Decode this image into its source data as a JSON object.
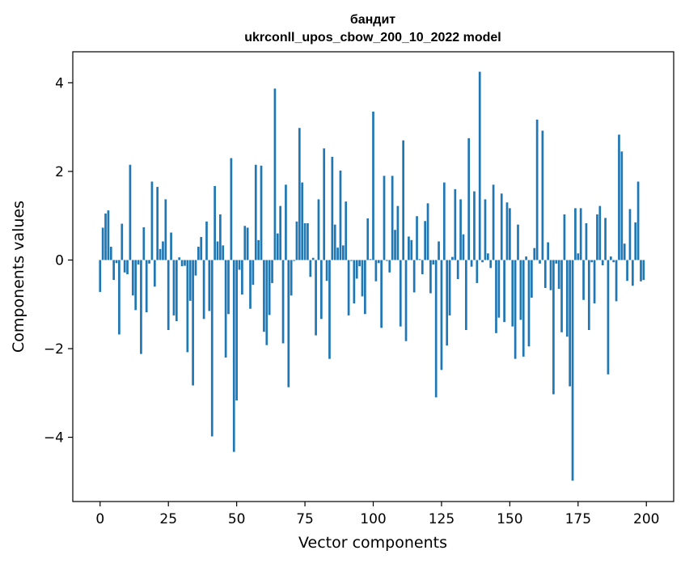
{
  "chart_data": {
    "type": "bar",
    "title": "бандит",
    "subtitle": "ukrconll_upos_cbow_200_10_2022 model",
    "xlabel": "Vector components",
    "ylabel": "Components values",
    "xlim": [
      -10,
      210
    ],
    "ylim": [
      -5.45,
      4.7
    ],
    "xticks": [
      0,
      25,
      50,
      75,
      100,
      125,
      150,
      175,
      200
    ],
    "xtick_labels": [
      "0",
      "25",
      "50",
      "75",
      "100",
      "125",
      "150",
      "175",
      "200"
    ],
    "yticks": [
      -4,
      -2,
      0,
      2,
      4
    ],
    "ytick_labels": [
      "−4",
      "−2",
      "0",
      "2",
      "4"
    ],
    "grid": false,
    "bar_color": "#1f77b4",
    "x": [
      0,
      1,
      2,
      3,
      4,
      5,
      6,
      7,
      8,
      9,
      10,
      11,
      12,
      13,
      14,
      15,
      16,
      17,
      18,
      19,
      20,
      21,
      22,
      23,
      24,
      25,
      26,
      27,
      28,
      29,
      30,
      31,
      32,
      33,
      34,
      35,
      36,
      37,
      38,
      39,
      40,
      41,
      42,
      43,
      44,
      45,
      46,
      47,
      48,
      49,
      50,
      51,
      52,
      53,
      54,
      55,
      56,
      57,
      58,
      59,
      60,
      61,
      62,
      63,
      64,
      65,
      66,
      67,
      68,
      69,
      70,
      71,
      72,
      73,
      74,
      75,
      76,
      77,
      78,
      79,
      80,
      81,
      82,
      83,
      84,
      85,
      86,
      87,
      88,
      89,
      90,
      91,
      92,
      93,
      94,
      95,
      96,
      97,
      98,
      99,
      100,
      101,
      102,
      103,
      104,
      105,
      106,
      107,
      108,
      109,
      110,
      111,
      112,
      113,
      114,
      115,
      116,
      117,
      118,
      119,
      120,
      121,
      122,
      123,
      124,
      125,
      126,
      127,
      128,
      129,
      130,
      131,
      132,
      133,
      134,
      135,
      136,
      137,
      138,
      139,
      140,
      141,
      142,
      143,
      144,
      145,
      146,
      147,
      148,
      149,
      150,
      151,
      152,
      153,
      154,
      155,
      156,
      157,
      158,
      159,
      160,
      161,
      162,
      163,
      164,
      165,
      166,
      167,
      168,
      169,
      170,
      171,
      172,
      173,
      174,
      175,
      176,
      177,
      178,
      179,
      180,
      181,
      182,
      183,
      184,
      185,
      186,
      187,
      188,
      189,
      190,
      191,
      192,
      193,
      194,
      195,
      196,
      197,
      198,
      199
    ],
    "values": [
      -0.72,
      0.73,
      1.05,
      1.12,
      0.3,
      -0.45,
      -0.07,
      -1.68,
      0.82,
      -0.28,
      -0.32,
      2.15,
      -0.8,
      -1.13,
      -0.1,
      -2.12,
      0.74,
      -1.18,
      -0.08,
      1.77,
      -0.6,
      1.65,
      0.25,
      0.42,
      1.37,
      -1.58,
      0.62,
      -1.25,
      -1.38,
      0.06,
      -0.14,
      -0.13,
      -2.08,
      -0.92,
      -2.83,
      -0.35,
      0.3,
      0.52,
      -1.33,
      0.87,
      -1.15,
      -3.98,
      1.67,
      0.42,
      1.03,
      0.33,
      -2.2,
      -1.22,
      2.3,
      -4.33,
      -3.17,
      -0.22,
      -0.78,
      0.77,
      0.73,
      -1.1,
      -0.56,
      2.15,
      0.45,
      2.13,
      -1.62,
      -1.92,
      -1.24,
      -0.52,
      3.87,
      0.6,
      1.22,
      -1.88,
      1.7,
      -2.87,
      -0.8,
      -0.02,
      0.87,
      2.98,
      1.75,
      0.83,
      0.83,
      -0.38,
      0.05,
      -1.7,
      1.37,
      -1.33,
      2.52,
      -0.47,
      -2.23,
      2.33,
      0.8,
      0.28,
      2.02,
      0.33,
      1.32,
      -1.25,
      -0.02,
      -0.98,
      -0.42,
      -0.14,
      -0.82,
      -1.22,
      0.94,
      0.02,
      3.35,
      -0.48,
      -0.07,
      -1.53,
      1.9,
      -0.02,
      -0.28,
      1.9,
      0.68,
      1.22,
      -1.5,
      2.7,
      -1.83,
      0.53,
      0.45,
      -0.73,
      0.99,
      0.02,
      -0.32,
      0.88,
      1.28,
      -0.75,
      -0.1,
      -3.1,
      0.42,
      -2.48,
      1.75,
      -1.93,
      -1.25,
      0.07,
      1.6,
      -0.43,
      1.37,
      0.58,
      -1.58,
      2.75,
      -0.15,
      1.55,
      -0.52,
      4.25,
      -0.05,
      1.37,
      0.15,
      -0.18,
      1.7,
      -1.65,
      -1.3,
      1.5,
      -1.4,
      1.3,
      1.17,
      -1.5,
      -2.23,
      0.8,
      -1.35,
      -2.18,
      0.08,
      -1.95,
      -0.85,
      0.27,
      3.17,
      -0.08,
      2.92,
      -0.63,
      0.4,
      -0.68,
      -3.03,
      -0.08,
      -0.65,
      -1.63,
      1.03,
      -1.73,
      -2.85,
      -4.98,
      1.17,
      0.15,
      1.17,
      -0.9,
      0.83,
      -1.58,
      -0.05,
      -0.98,
      1.03,
      1.22,
      -0.12,
      0.95,
      -2.58,
      0.08,
      -0.05,
      -0.93,
      2.83,
      2.45,
      0.37,
      -0.47,
      1.15,
      -0.58,
      0.85,
      1.77,
      -0.48,
      -0.45
    ]
  }
}
